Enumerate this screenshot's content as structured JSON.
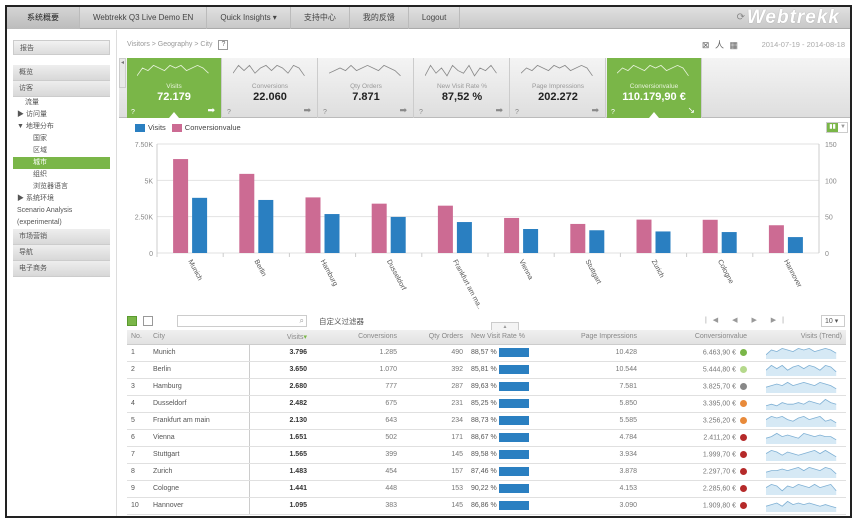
{
  "topnav": {
    "items": [
      "系统概要",
      "Webtrekk Q3 Live Demo EN",
      "Quick Insights ▾",
      "支持中心",
      "我的反馈",
      "Logout"
    ],
    "logo": "Webtrekk",
    "refresh_icon": "refresh-icon"
  },
  "sidebar": {
    "report_btn": "报告",
    "sections": [
      {
        "label": "概览"
      },
      {
        "label": "访客"
      }
    ],
    "items": [
      {
        "label": "流量",
        "indent": 1
      },
      {
        "label": "▶ 访问量",
        "indent": 0
      },
      {
        "label": "▼ 地理分布",
        "indent": 0
      },
      {
        "label": "国家",
        "indent": 2
      },
      {
        "label": "区域",
        "indent": 2
      },
      {
        "label": "城市",
        "indent": 2,
        "active": true
      },
      {
        "label": "组织",
        "indent": 2
      },
      {
        "label": "浏览器语言",
        "indent": 2
      },
      {
        "label": "▶ 系统环境",
        "indent": 0
      },
      {
        "label": "Scenario Analysis",
        "indent": 0
      },
      {
        "label": "(experimental)",
        "indent": 0
      }
    ],
    "bottom_sections": [
      "市场营销",
      "导航",
      "电子商务"
    ]
  },
  "breadcrumb": {
    "path": "Visitors > Geography > ",
    "current": "City",
    "help": "?"
  },
  "toolbar": {
    "date_range": "2014-07-19 - 2014-08-18"
  },
  "kpis": [
    {
      "label": "Visits",
      "value": "72.179",
      "active": true
    },
    {
      "label": "Conversions",
      "value": "22.060",
      "active": false
    },
    {
      "label": "Qty Orders",
      "value": "7.871",
      "active": false
    },
    {
      "label": "New Visit Rate %",
      "value": "87,52 %",
      "active": false
    },
    {
      "label": "Page Impressions",
      "value": "202.272",
      "active": false
    },
    {
      "label": "Conversionvalue",
      "value": "110.179,90 €",
      "active": true
    }
  ],
  "chart_data": {
    "type": "bar",
    "title": "",
    "categories": [
      "Munich",
      "Berlin",
      "Hamburg",
      "Dusseldorf",
      "Frankfurt am ma...",
      "Vienna",
      "Stuttgart",
      "Zurich",
      "Cologne",
      "Hannover"
    ],
    "series": [
      {
        "name": "Conversionvalue",
        "color": "#cc6b93",
        "axis": "left",
        "values": [
          6463.9,
          5444.8,
          3825.7,
          3395.0,
          3256.2,
          2411.2,
          1999.7,
          2297.7,
          2285.6,
          1909.8
        ]
      },
      {
        "name": "Visits",
        "color": "#2a7fc1",
        "axis": "left",
        "values": [
          3796,
          3650,
          2680,
          2482,
          2130,
          1651,
          1565,
          1483,
          1441,
          1095
        ]
      }
    ],
    "left_ticks": [
      "0",
      "2.50K",
      "5K",
      "7.50K"
    ],
    "right_ticks": [
      "0",
      "50",
      "100",
      "150"
    ],
    "ylim": [
      0,
      7500
    ],
    "y2lim": [
      0,
      150
    ],
    "legend": [
      "Visits",
      "Conversionvalue"
    ],
    "legend_position": "top-left",
    "grid": true
  },
  "grid": {
    "search_placeholder": "",
    "custom_filter": "自定义过滤器",
    "per_page": "10 ▾",
    "pager": "|◀ ◀ ▶ ▶|",
    "columns": [
      "No.",
      "City",
      "Visits",
      "Conversions",
      "Qty Orders",
      "New Visit Rate %",
      "Page Impressions",
      "Conversionvalue",
      "Visits (Trend)"
    ],
    "rows": [
      {
        "no": "1",
        "city": "Munich",
        "visits": "3.796",
        "conv": "1.285",
        "orders": "490",
        "nvr": "88,57 %",
        "pi": "10.428",
        "cv": "6.463,90 €",
        "status": "#7ab648",
        "trend": "2,5,4,6,5,4,6,5,6,4,5,6,5,3"
      },
      {
        "no": "2",
        "city": "Berlin",
        "visits": "3.650",
        "conv": "1.070",
        "orders": "392",
        "nvr": "85,81 %",
        "pi": "10.544",
        "cv": "5.444,80 €",
        "status": "#b5d98c",
        "trend": "3,6,4,6,3,5,6,4,6,5,3,6,5,2"
      },
      {
        "no": "3",
        "city": "Hamburg",
        "visits": "2.680",
        "conv": "777",
        "orders": "287",
        "nvr": "89,63 %",
        "pi": "7.581",
        "cv": "3.825,70 €",
        "status": "#888888",
        "trend": "3,4,5,4,6,4,5,6,5,4,6,5,4,2"
      },
      {
        "no": "4",
        "city": "Dusseldorf",
        "visits": "2.482",
        "conv": "675",
        "orders": "231",
        "nvr": "85,25 %",
        "pi": "5.850",
        "cv": "3.395,00 €",
        "status": "#e88a3a",
        "trend": "2,3,2,4,3,3,4,3,5,4,3,6,4,3"
      },
      {
        "no": "5",
        "city": "Frankfurt am main",
        "visits": "2.130",
        "conv": "643",
        "orders": "234",
        "nvr": "88,73 %",
        "pi": "5.585",
        "cv": "3.256,20 €",
        "status": "#e88a3a",
        "trend": "4,6,5,6,4,3,5,6,4,5,6,3,4,2"
      },
      {
        "no": "6",
        "city": "Vienna",
        "visits": "1.651",
        "conv": "502",
        "orders": "171",
        "nvr": "88,67 %",
        "pi": "4.784",
        "cv": "2.411,20 €",
        "status": "#b52a2a",
        "trend": "3,4,6,4,5,4,3,6,5,4,5,4,4,2"
      },
      {
        "no": "7",
        "city": "Stuttgart",
        "visits": "1.565",
        "conv": "399",
        "orders": "145",
        "nvr": "89,58 %",
        "pi": "3.934",
        "cv": "1.999,70 €",
        "status": "#b52a2a",
        "trend": "4,6,5,3,5,4,3,4,5,6,4,6,4,2"
      },
      {
        "no": "8",
        "city": "Zurich",
        "visits": "1.483",
        "conv": "454",
        "orders": "157",
        "nvr": "87,46 %",
        "pi": "3.878",
        "cv": "2.297,70 €",
        "status": "#b52a2a",
        "trend": "3,4,4,5,4,5,6,4,6,5,4,6,5,2"
      },
      {
        "no": "9",
        "city": "Cologne",
        "visits": "1.441",
        "conv": "448",
        "orders": "153",
        "nvr": "90,22 %",
        "pi": "4.153",
        "cv": "2.285,60 €",
        "status": "#b52a2a",
        "trend": "4,6,5,2,5,4,6,5,4,6,4,5,6,2"
      },
      {
        "no": "10",
        "city": "Hannover",
        "visits": "1.095",
        "conv": "383",
        "orders": "145",
        "nvr": "86,86 %",
        "pi": "3.090",
        "cv": "1.909,80 €",
        "status": "#b52a2a",
        "trend": "3,4,5,3,6,4,5,4,5,4,3,4,3,2"
      }
    ]
  }
}
